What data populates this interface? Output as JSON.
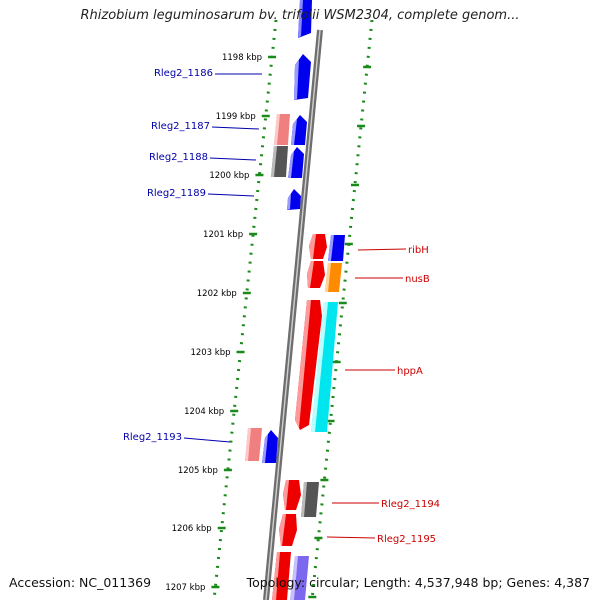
{
  "title": "Rhizobium leguminosarum bv. trifolii WSM2304, complete genom...",
  "footer": {
    "accession": "Accession: NC_011369",
    "summary": "Topology: circular; Length: 4,537,948 bp; Genes: 4,387"
  },
  "ticks": [
    "1198 kbp",
    "1199 kbp",
    "1200 kbp",
    "1201 kbp",
    "1202 kbp",
    "1203 kbp",
    "1204 kbp",
    "1205 kbp",
    "1206 kbp",
    "1207 kbp"
  ],
  "colors": {
    "forward_gene": "#0000ee",
    "reverse_gene": "#ee0000",
    "pseudo_pink": "#f08080",
    "gray_feature": "#555555",
    "orange_feature": "#ff8c00",
    "cyan_feature": "#00e5ee",
    "lavender_feature": "#7b68ee",
    "backbone": "#808080",
    "dots": "#1a8a1a",
    "left_label": "#0000aa",
    "right_label": "#cc0000"
  },
  "left_labels": [
    "Rleg2_1186",
    "Rleg2_1187",
    "Rleg2_1188",
    "Rleg2_1189",
    "Rleg2_1193"
  ],
  "right_labels": [
    "ribH",
    "nusB",
    "hppA",
    "Rleg2_1194",
    "Rleg2_1195"
  ]
}
